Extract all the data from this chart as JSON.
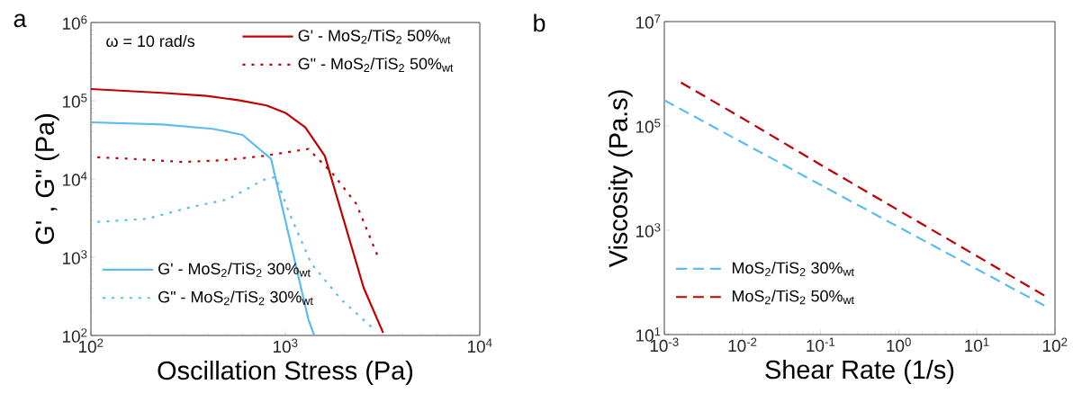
{
  "chart_data": [
    {
      "type": "line",
      "title": "a",
      "xlabel": "Oscillation Stress (Pa)",
      "ylabel": "G' , G\" (Pa)",
      "log": "xy",
      "grid": false,
      "annotations": [
        "ω = 10 rad/s"
      ],
      "legend": [
        "top right",
        "bottom left"
      ],
      "xlim": [
        100,
        10000
      ],
      "ylim": [
        100,
        1000000
      ],
      "xticks": [
        {
          "value": 100,
          "label": "10$^{2}$"
        },
        {
          "value": 1000,
          "label": "10$^{3}$"
        },
        {
          "value": 10000,
          "label": "10$^{4}$"
        }
      ],
      "yticks": [
        {
          "value": 100,
          "label": "10$^{2}$"
        },
        {
          "value": 1000,
          "label": "10$^{3}$"
        },
        {
          "value": 10000,
          "label": "10$^{4}$"
        },
        {
          "value": 100000,
          "label": "10$^{5}$"
        },
        {
          "value": 1000000,
          "label": "10$^{6}$"
        }
      ],
      "series": [
        {
          "name": "G' - MoS$_{2}$/TiS$_{2}$ 50%$_{wt}$",
          "color": "#c00000",
          "line_style": "solid",
          "x": [
            100,
            232,
            394,
            582,
            800,
            1000,
            1267,
            1596,
            2528,
            3184
          ],
          "values": [
            141000,
            126000,
            115000,
            101000,
            87000,
            70000,
            45600,
            19700,
            406,
            108
          ]
        },
        {
          "name": "G\" - MoS$_{2}$/TiS$_{2}$ 50%$_{wt}$",
          "color": "#c00000",
          "line_style": "dotted",
          "x": [
            108,
            162,
            296,
            470,
            773,
            1312,
            1746,
            2317,
            2965
          ],
          "values": [
            18900,
            18100,
            16500,
            17300,
            19700,
            24200,
            11800,
            4810,
            1075
          ]
        },
        {
          "name": "G'  - MoS$_{2}$/TiS$_{2}$ 30%$_{wt}$",
          "color": "#5bbcf0",
          "line_style": "solid",
          "x": [
            100,
            232,
            423,
            603,
            844,
            1313,
            1408
          ],
          "values": [
            53000,
            49800,
            43700,
            36600,
            18100,
            161,
            100
          ]
        },
        {
          "name": "G\" - MoS$_{2}$/TiS$_{2}$ 30%$_{wt}$",
          "color": "#5bbcf0",
          "line_style": "dotted",
          "x": [
            108,
            194,
            330,
            505,
            773,
            889,
            1062,
            1361,
            1941,
            2767
          ],
          "values": [
            2830,
            3090,
            4400,
            5480,
            9750,
            10600,
            3380,
            824,
            286,
            129
          ]
        }
      ]
    },
    {
      "type": "line",
      "title": "b",
      "xlabel": "Shear Rate (1/s)",
      "ylabel": "Viscosity (Pa.s)",
      "log": "xy",
      "grid": false,
      "legend": [
        "bottom left"
      ],
      "xlim": [
        0.001,
        100
      ],
      "ylim": [
        10,
        10000000
      ],
      "xticks": [
        {
          "value": 0.001,
          "label": "10$^{-3}$"
        },
        {
          "value": 0.01,
          "label": "10$^{-2}$"
        },
        {
          "value": 0.1,
          "label": "10$^{-1}$"
        },
        {
          "value": 1,
          "label": "10$^{0}$"
        },
        {
          "value": 10,
          "label": "10$^{1}$"
        },
        {
          "value": 100,
          "label": "10$^{2}$"
        }
      ],
      "yticks": [
        {
          "value": 10,
          "label": "10$^{1}$"
        },
        {
          "value": 1000,
          "label": "10$^{3}$"
        },
        {
          "value": 100000,
          "label": "10$^{5}$"
        },
        {
          "value": 10000000,
          "label": "10$^{7}$"
        }
      ],
      "series": [
        {
          "name": "MoS$_{2}$/TiS$_{2}$ 30%$_{wt}$",
          "color": "#5bbcf0",
          "line_style": "dashed",
          "x": [
            0.001,
            0.01,
            0.1,
            1,
            10,
            73
          ],
          "values": [
            310000,
            48000,
            7400,
            1150,
            180,
            36
          ]
        },
        {
          "name": "MoS$_{2}$/TiS$_{2}$ 50%$_{wt}$",
          "color": "#c00000",
          "line_style": "dashed",
          "x": [
            0.00163,
            0.01,
            0.1,
            1,
            10,
            73
          ],
          "values": [
            680000,
            140000,
            18000,
            2400,
            320,
            56
          ]
        }
      ]
    }
  ]
}
